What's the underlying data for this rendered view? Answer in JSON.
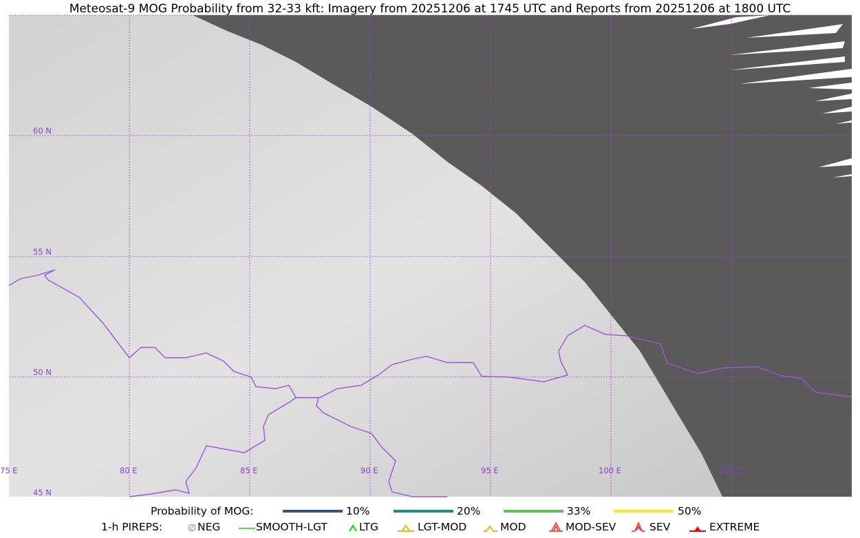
{
  "title": "Meteosat-9 MOG Probability from 32-33 kft: Imagery from 20251206 at 1745 UTC and Reports from 20251206 at 1800 UTC",
  "map": {
    "lon_labels": [
      "75 E",
      "80 E",
      "85 E",
      "90 E",
      "95 E",
      "100 E",
      "105 E"
    ],
    "lat_labels": [
      "60 N",
      "55 N",
      "50 N",
      "45 N"
    ],
    "grid_color": "#9a3fd6",
    "border_color": "#a052d8",
    "space_color": "#5a5a5a"
  },
  "legend": {
    "mog_title": "Probability of MOG:",
    "mog_levels": [
      {
        "label": "10%",
        "color": "#3b4f8a"
      },
      {
        "label": "20%",
        "color": "#21898a"
      },
      {
        "label": "33%",
        "color": "#5cc25a"
      },
      {
        "label": "50%",
        "color": "#fde725"
      }
    ],
    "pirep_title": "1-h PIREPS:",
    "pireps": [
      {
        "label": "NEG",
        "icon": "neg-circle-slash-icon",
        "color": "#b0b0ff"
      },
      {
        "label": "SMOOTH-LGT",
        "icon": "line-icon",
        "color": "#00e000"
      },
      {
        "label": "LTG",
        "icon": "caret-icon",
        "color": "#00dd00"
      },
      {
        "label": "LGT-MOD",
        "icon": "caret-bar-icon",
        "color": "#f4b020"
      },
      {
        "label": "MOD",
        "icon": "caret-icon",
        "color": "#f4b020"
      },
      {
        "label": "MOD-SEV",
        "icon": "double-caret-bar-icon",
        "color": "#ff2020"
      },
      {
        "label": "SEV",
        "icon": "double-caret-icon",
        "color": "#ff2020"
      },
      {
        "label": "EXTREME",
        "icon": "filled-triangle-icon",
        "color": "#ff0000"
      }
    ]
  }
}
